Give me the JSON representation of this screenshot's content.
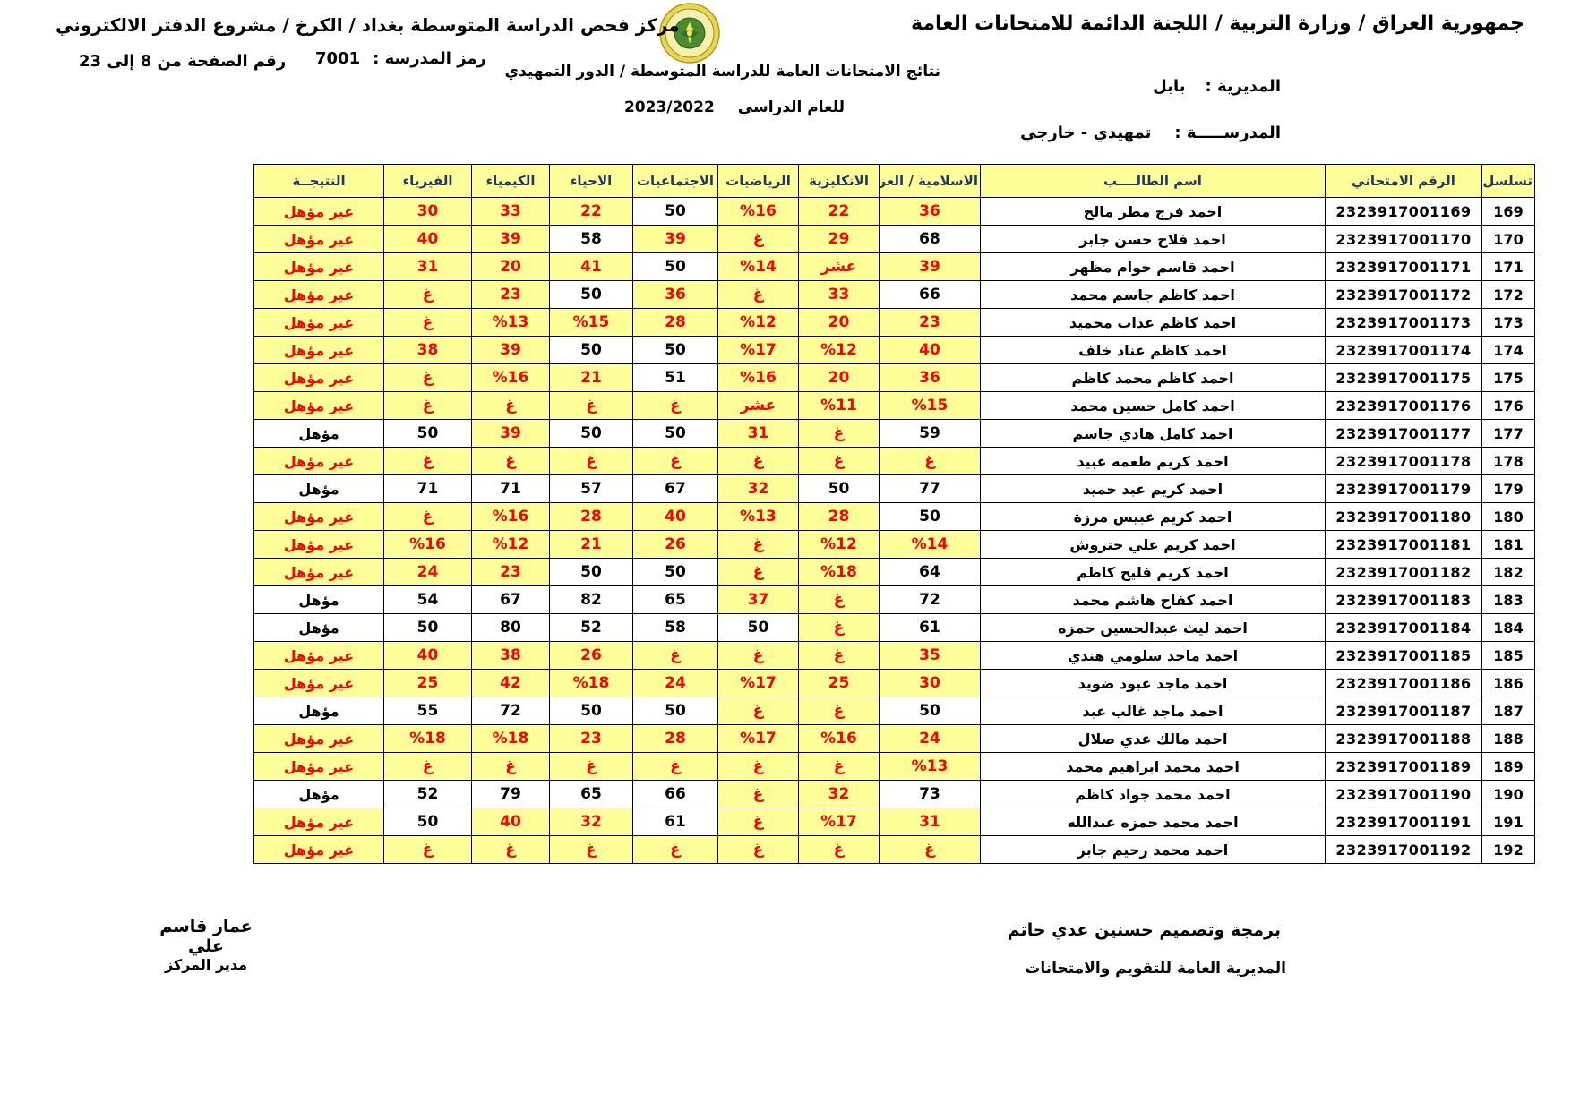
{
  "page": {
    "title_right": "جمهورية العراق / وزارة التربية / اللجنة الدائمة للامتحانات العامة",
    "title_left": "مركز فحص الدراسة المتوسطة بغداد / الكرخ / مشروع الدفتر الالكتروني",
    "page_range_label": "رقم الصفحة من  8 إلى 23",
    "school_code_label": "رمز المدرسة :",
    "school_code_value": "7001",
    "exam_results_title": "نتائج الامتحانات العامة للدراسة المتوسطة / الدور التمهيدي",
    "academic_year_label": "للعام الدراسي",
    "academic_year_value": "2023/2022",
    "directorate_label": "المديرية :",
    "directorate_value": "بابل",
    "school_label": "المدرســـــة :",
    "school_value": "تمهيدي - خارجي"
  },
  "colors": {
    "highlight": "#FFFF99",
    "fail_text": "#FF0000",
    "header_text": "#1F3864"
  },
  "logo": {
    "name": "iraq-ministry-of-education-emblem"
  },
  "table": {
    "headers": [
      {
        "key": "serial",
        "label": "تسلسل"
      },
      {
        "key": "exam-number",
        "label": "الرقم الامتحاني"
      },
      {
        "key": "student-name",
        "label": "اسم الطالــــب"
      },
      {
        "key": "islamic-arabic",
        "label": "الاسلامية / العربية"
      },
      {
        "key": "english",
        "label": "الانكليزية"
      },
      {
        "key": "math",
        "label": "الرياضيات"
      },
      {
        "key": "social",
        "label": "الاجتماعيات"
      },
      {
        "key": "biology",
        "label": "الاحياء"
      },
      {
        "key": "chemistry",
        "label": "الكيمياء"
      },
      {
        "key": "physics",
        "label": "الفيزياء"
      },
      {
        "key": "result",
        "label": "النتيجــة"
      }
    ],
    "rows": [
      {
        "serial": "169",
        "exam_number": "2323917001169",
        "name": "احمد فرج مطر مالح",
        "scores": [
          {
            "v": "36",
            "f": true
          },
          {
            "v": "22",
            "f": true
          },
          {
            "v": "%16",
            "f": true
          },
          {
            "v": "50",
            "f": false
          },
          {
            "v": "22",
            "f": true
          },
          {
            "v": "33",
            "f": true
          },
          {
            "v": "30",
            "f": true
          }
        ],
        "result": {
          "v": "غير مؤهل",
          "f": true
        }
      },
      {
        "serial": "170",
        "exam_number": "2323917001170",
        "name": "احمد فلاح حسن جابر",
        "scores": [
          {
            "v": "68",
            "f": false
          },
          {
            "v": "29",
            "f": true
          },
          {
            "v": "غ",
            "f": true
          },
          {
            "v": "39",
            "f": true
          },
          {
            "v": "58",
            "f": false
          },
          {
            "v": "39",
            "f": true
          },
          {
            "v": "40",
            "f": true
          }
        ],
        "result": {
          "v": "غير مؤهل",
          "f": true
        }
      },
      {
        "serial": "171",
        "exam_number": "2323917001171",
        "name": "احمد قاسم خوام مظهر",
        "scores": [
          {
            "v": "39",
            "f": true
          },
          {
            "v": "عشر",
            "f": true
          },
          {
            "v": "%14",
            "f": true
          },
          {
            "v": "50",
            "f": false
          },
          {
            "v": "41",
            "f": true
          },
          {
            "v": "20",
            "f": true
          },
          {
            "v": "31",
            "f": true
          }
        ],
        "result": {
          "v": "غير مؤهل",
          "f": true
        }
      },
      {
        "serial": "172",
        "exam_number": "2323917001172",
        "name": "احمد كاظم جاسم محمد",
        "scores": [
          {
            "v": "66",
            "f": false
          },
          {
            "v": "33",
            "f": true
          },
          {
            "v": "غ",
            "f": true
          },
          {
            "v": "36",
            "f": true
          },
          {
            "v": "50",
            "f": false
          },
          {
            "v": "23",
            "f": true
          },
          {
            "v": "غ",
            "f": true
          }
        ],
        "result": {
          "v": "غير مؤهل",
          "f": true
        }
      },
      {
        "serial": "173",
        "exam_number": "2323917001173",
        "name": "احمد كاظم عذاب محميد",
        "scores": [
          {
            "v": "23",
            "f": true
          },
          {
            "v": "20",
            "f": true
          },
          {
            "v": "%12",
            "f": true
          },
          {
            "v": "28",
            "f": true
          },
          {
            "v": "%15",
            "f": true
          },
          {
            "v": "%13",
            "f": true
          },
          {
            "v": "غ",
            "f": true
          }
        ],
        "result": {
          "v": "غير مؤهل",
          "f": true
        }
      },
      {
        "serial": "174",
        "exam_number": "2323917001174",
        "name": "احمد كاظم عناد خلف",
        "scores": [
          {
            "v": "40",
            "f": true
          },
          {
            "v": "%12",
            "f": true
          },
          {
            "v": "%17",
            "f": true
          },
          {
            "v": "50",
            "f": false
          },
          {
            "v": "50",
            "f": false
          },
          {
            "v": "39",
            "f": true
          },
          {
            "v": "38",
            "f": true
          }
        ],
        "result": {
          "v": "غير مؤهل",
          "f": true
        }
      },
      {
        "serial": "175",
        "exam_number": "2323917001175",
        "name": "احمد كاظم محمد كاظم",
        "scores": [
          {
            "v": "36",
            "f": true
          },
          {
            "v": "20",
            "f": true
          },
          {
            "v": "%16",
            "f": true
          },
          {
            "v": "51",
            "f": false
          },
          {
            "v": "21",
            "f": true
          },
          {
            "v": "%16",
            "f": true
          },
          {
            "v": "غ",
            "f": true
          }
        ],
        "result": {
          "v": "غير مؤهل",
          "f": true
        }
      },
      {
        "serial": "176",
        "exam_number": "2323917001176",
        "name": "احمد كامل حسين محمد",
        "scores": [
          {
            "v": "%15",
            "f": true
          },
          {
            "v": "%11",
            "f": true
          },
          {
            "v": "عشر",
            "f": true
          },
          {
            "v": "غ",
            "f": true
          },
          {
            "v": "غ",
            "f": true
          },
          {
            "v": "غ",
            "f": true
          },
          {
            "v": "غ",
            "f": true
          }
        ],
        "result": {
          "v": "غير مؤهل",
          "f": true
        }
      },
      {
        "serial": "177",
        "exam_number": "2323917001177",
        "name": "احمد كامل هادي جاسم",
        "scores": [
          {
            "v": "59",
            "f": false
          },
          {
            "v": "غ",
            "f": true
          },
          {
            "v": "31",
            "f": true
          },
          {
            "v": "50",
            "f": false
          },
          {
            "v": "50",
            "f": false
          },
          {
            "v": "39",
            "f": true
          },
          {
            "v": "50",
            "f": false
          }
        ],
        "result": {
          "v": "مؤهل",
          "f": false
        }
      },
      {
        "serial": "178",
        "exam_number": "2323917001178",
        "name": "احمد كريم طعمه عبيد",
        "scores": [
          {
            "v": "غ",
            "f": true
          },
          {
            "v": "غ",
            "f": true
          },
          {
            "v": "غ",
            "f": true
          },
          {
            "v": "غ",
            "f": true
          },
          {
            "v": "غ",
            "f": true
          },
          {
            "v": "غ",
            "f": true
          },
          {
            "v": "غ",
            "f": true
          }
        ],
        "result": {
          "v": "غير مؤهل",
          "f": true
        }
      },
      {
        "serial": "179",
        "exam_number": "2323917001179",
        "name": "احمد كريم عبد حميد",
        "scores": [
          {
            "v": "77",
            "f": false
          },
          {
            "v": "50",
            "f": false
          },
          {
            "v": "32",
            "f": true
          },
          {
            "v": "67",
            "f": false
          },
          {
            "v": "57",
            "f": false
          },
          {
            "v": "71",
            "f": false
          },
          {
            "v": "71",
            "f": false
          }
        ],
        "result": {
          "v": "مؤهل",
          "f": false
        }
      },
      {
        "serial": "180",
        "exam_number": "2323917001180",
        "name": "احمد كريم عبيس مرزة",
        "scores": [
          {
            "v": "50",
            "f": false
          },
          {
            "v": "28",
            "f": true
          },
          {
            "v": "%13",
            "f": true
          },
          {
            "v": "40",
            "f": true
          },
          {
            "v": "28",
            "f": true
          },
          {
            "v": "%16",
            "f": true
          },
          {
            "v": "غ",
            "f": true
          }
        ],
        "result": {
          "v": "غير مؤهل",
          "f": true
        }
      },
      {
        "serial": "181",
        "exam_number": "2323917001181",
        "name": "احمد كريم علي حتروش",
        "scores": [
          {
            "v": "%14",
            "f": true
          },
          {
            "v": "%12",
            "f": true
          },
          {
            "v": "غ",
            "f": true
          },
          {
            "v": "26",
            "f": true
          },
          {
            "v": "21",
            "f": true
          },
          {
            "v": "%12",
            "f": true
          },
          {
            "v": "%16",
            "f": true
          }
        ],
        "result": {
          "v": "غير مؤهل",
          "f": true
        }
      },
      {
        "serial": "182",
        "exam_number": "2323917001182",
        "name": "احمد كريم فليح كاظم",
        "scores": [
          {
            "v": "64",
            "f": false
          },
          {
            "v": "%18",
            "f": true
          },
          {
            "v": "غ",
            "f": true
          },
          {
            "v": "50",
            "f": false
          },
          {
            "v": "50",
            "f": false
          },
          {
            "v": "23",
            "f": true
          },
          {
            "v": "24",
            "f": true
          }
        ],
        "result": {
          "v": "غير مؤهل",
          "f": true
        }
      },
      {
        "serial": "183",
        "exam_number": "2323917001183",
        "name": "احمد كفاح هاشم محمد",
        "scores": [
          {
            "v": "72",
            "f": false
          },
          {
            "v": "غ",
            "f": true
          },
          {
            "v": "37",
            "f": true
          },
          {
            "v": "65",
            "f": false
          },
          {
            "v": "82",
            "f": false
          },
          {
            "v": "67",
            "f": false
          },
          {
            "v": "54",
            "f": false
          }
        ],
        "result": {
          "v": "مؤهل",
          "f": false
        }
      },
      {
        "serial": "184",
        "exam_number": "2323917001184",
        "name": "احمد ليث عبدالحسين حمزه",
        "scores": [
          {
            "v": "61",
            "f": false
          },
          {
            "v": "غ",
            "f": true
          },
          {
            "v": "50",
            "f": false
          },
          {
            "v": "58",
            "f": false
          },
          {
            "v": "52",
            "f": false
          },
          {
            "v": "80",
            "f": false
          },
          {
            "v": "50",
            "f": false
          }
        ],
        "result": {
          "v": "مؤهل",
          "f": false
        }
      },
      {
        "serial": "185",
        "exam_number": "2323917001185",
        "name": "احمد ماجد سلومي هندي",
        "scores": [
          {
            "v": "35",
            "f": true
          },
          {
            "v": "غ",
            "f": true
          },
          {
            "v": "غ",
            "f": true
          },
          {
            "v": "غ",
            "f": true
          },
          {
            "v": "26",
            "f": true
          },
          {
            "v": "38",
            "f": true
          },
          {
            "v": "40",
            "f": true
          }
        ],
        "result": {
          "v": "غير مؤهل",
          "f": true
        }
      },
      {
        "serial": "186",
        "exam_number": "2323917001186",
        "name": "احمد ماجد عبود ضويد",
        "scores": [
          {
            "v": "30",
            "f": true
          },
          {
            "v": "25",
            "f": true
          },
          {
            "v": "%17",
            "f": true
          },
          {
            "v": "24",
            "f": true
          },
          {
            "v": "%18",
            "f": true
          },
          {
            "v": "42",
            "f": true
          },
          {
            "v": "25",
            "f": true
          }
        ],
        "result": {
          "v": "غير مؤهل",
          "f": true
        }
      },
      {
        "serial": "187",
        "exam_number": "2323917001187",
        "name": "احمد ماجد غالب عبد",
        "scores": [
          {
            "v": "50",
            "f": false
          },
          {
            "v": "غ",
            "f": true
          },
          {
            "v": "غ",
            "f": true
          },
          {
            "v": "50",
            "f": false
          },
          {
            "v": "50",
            "f": false
          },
          {
            "v": "72",
            "f": false
          },
          {
            "v": "55",
            "f": false
          }
        ],
        "result": {
          "v": "مؤهل",
          "f": false
        }
      },
      {
        "serial": "188",
        "exam_number": "2323917001188",
        "name": "احمد مالك عدي صلال",
        "scores": [
          {
            "v": "24",
            "f": true
          },
          {
            "v": "%16",
            "f": true
          },
          {
            "v": "%17",
            "f": true
          },
          {
            "v": "28",
            "f": true
          },
          {
            "v": "23",
            "f": true
          },
          {
            "v": "%18",
            "f": true
          },
          {
            "v": "%18",
            "f": true
          }
        ],
        "result": {
          "v": "غير مؤهل",
          "f": true
        }
      },
      {
        "serial": "189",
        "exam_number": "2323917001189",
        "name": "احمد محمد ابراهيم محمد",
        "scores": [
          {
            "v": "%13",
            "f": true
          },
          {
            "v": "غ",
            "f": true
          },
          {
            "v": "غ",
            "f": true
          },
          {
            "v": "غ",
            "f": true
          },
          {
            "v": "غ",
            "f": true
          },
          {
            "v": "غ",
            "f": true
          },
          {
            "v": "غ",
            "f": true
          }
        ],
        "result": {
          "v": "غير مؤهل",
          "f": true
        }
      },
      {
        "serial": "190",
        "exam_number": "2323917001190",
        "name": "احمد محمد جواد كاظم",
        "scores": [
          {
            "v": "73",
            "f": false
          },
          {
            "v": "32",
            "f": true
          },
          {
            "v": "غ",
            "f": true
          },
          {
            "v": "66",
            "f": false
          },
          {
            "v": "65",
            "f": false
          },
          {
            "v": "79",
            "f": false
          },
          {
            "v": "52",
            "f": false
          }
        ],
        "result": {
          "v": "مؤهل",
          "f": false
        }
      },
      {
        "serial": "191",
        "exam_number": "2323917001191",
        "name": "احمد محمد حمزه عبدالله",
        "scores": [
          {
            "v": "31",
            "f": true
          },
          {
            "v": "%17",
            "f": true
          },
          {
            "v": "غ",
            "f": true
          },
          {
            "v": "61",
            "f": false
          },
          {
            "v": "32",
            "f": true
          },
          {
            "v": "40",
            "f": true
          },
          {
            "v": "50",
            "f": false
          }
        ],
        "result": {
          "v": "غير مؤهل",
          "f": true
        }
      },
      {
        "serial": "192",
        "exam_number": "2323917001192",
        "name": "احمد محمد رحيم جابر",
        "scores": [
          {
            "v": "غ",
            "f": true
          },
          {
            "v": "غ",
            "f": true
          },
          {
            "v": "غ",
            "f": true
          },
          {
            "v": "غ",
            "f": true
          },
          {
            "v": "غ",
            "f": true
          },
          {
            "v": "غ",
            "f": true
          },
          {
            "v": "غ",
            "f": true
          }
        ],
        "result": {
          "v": "غير مؤهل",
          "f": true
        }
      }
    ]
  },
  "footer": {
    "programming_credit": "برمجة وتصميم حسنين عدي حاتم",
    "directorate_general": "المديرية العامة للتقويم والامتحانات",
    "director_name": "عمار قاسم علي",
    "director_title": "مدير المركز"
  }
}
